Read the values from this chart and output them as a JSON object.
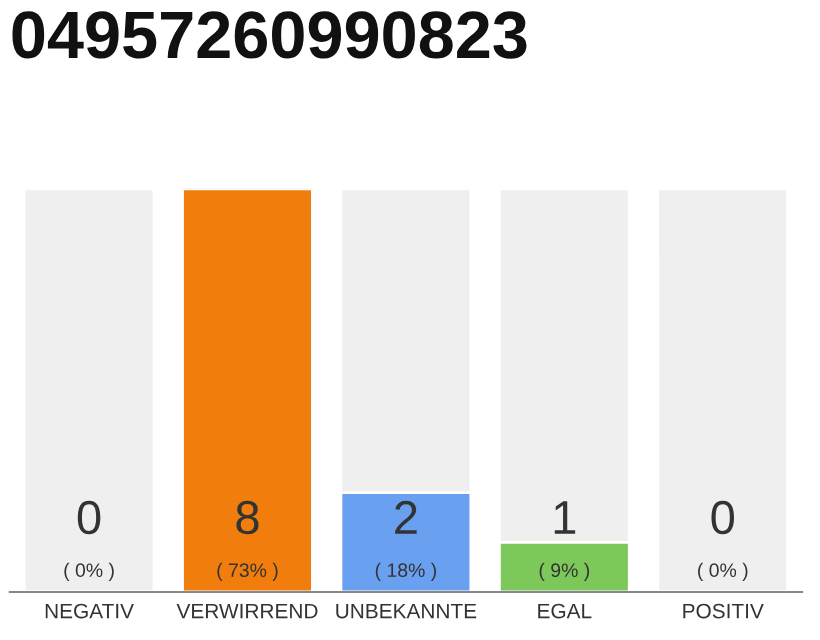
{
  "chart_data": {
    "type": "bar",
    "title": "04957260990823",
    "categories": [
      "NEGATIV",
      "VERWIRREND",
      "UNBEKANNTE",
      "EGAL",
      "POSITIV"
    ],
    "values": [
      0,
      73,
      18,
      9,
      0
    ],
    "colors": [
      "#efefef",
      "#f07d0c",
      "#6aa0f0",
      "#7dc85a",
      "#efefef"
    ],
    "value_labels": [
      "( 0% )",
      "( 73% )",
      "( 18% )",
      "( 9% )",
      "( 0% )"
    ],
    "tick_labels": "x",
    "grid": false,
    "legend": false,
    "annotations": [
      "0",
      "8",
      "2",
      "1",
      "0"
    ]
  }
}
